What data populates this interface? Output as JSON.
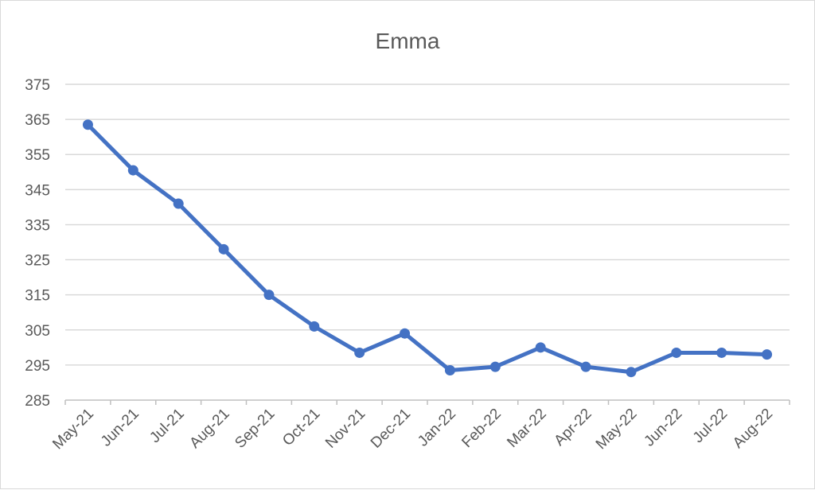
{
  "chart_data": {
    "type": "line",
    "title": "Emma",
    "xlabel": "",
    "ylabel": "",
    "categories": [
      "May-21",
      "Jun-21",
      "Jul-21",
      "Aug-21",
      "Sep-21",
      "Oct-21",
      "Nov-21",
      "Dec-21",
      "Jan-22",
      "Feb-22",
      "Mar-22",
      "Apr-22",
      "May-22",
      "Jun-22",
      "Jul-22",
      "Aug-22"
    ],
    "series": [
      {
        "values": [
          363.5,
          350.5,
          341,
          328,
          315,
          306,
          298.5,
          304,
          293.5,
          294.5,
          300,
          294.5,
          293,
          298.5,
          298.5,
          298
        ]
      }
    ],
    "ylim": [
      285,
      375
    ],
    "yticks": [
      285,
      295,
      305,
      315,
      325,
      335,
      345,
      355,
      365,
      375
    ],
    "grid": true,
    "legend": "none",
    "colors": {
      "line": "#4472c4"
    }
  }
}
